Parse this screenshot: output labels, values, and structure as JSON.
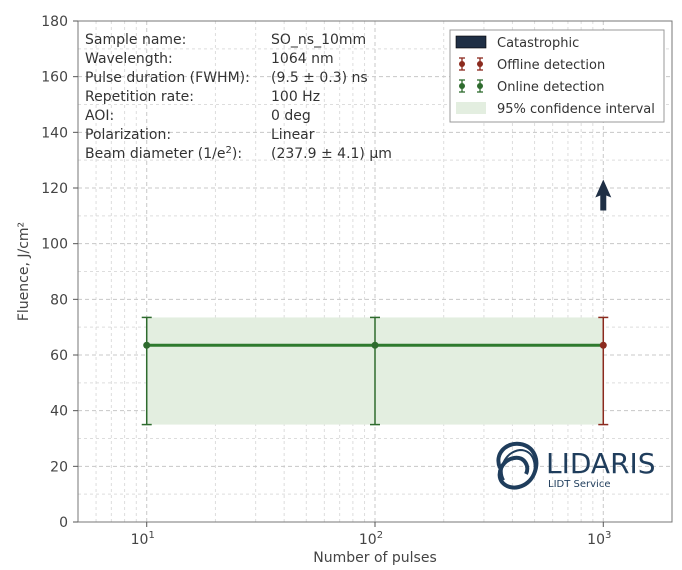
{
  "chart_data": {
    "type": "line",
    "xlabel": "Number of pulses",
    "ylabel": "Fluence, J/cm²",
    "xscale": "log",
    "xlim": [
      5,
      2000
    ],
    "ylim": [
      0,
      180
    ],
    "yticks": [
      0,
      20,
      40,
      60,
      80,
      100,
      120,
      140,
      160,
      180
    ],
    "xticks": [
      {
        "value": 10,
        "base": "10",
        "exp": "1"
      },
      {
        "value": 100,
        "base": "10",
        "exp": "2"
      },
      {
        "value": 1000,
        "base": "10",
        "exp": "3"
      }
    ],
    "grid": true,
    "info": [
      {
        "label": "Sample name:",
        "value": "SO_ns_10mm"
      },
      {
        "label": "Wavelength:",
        "value": "1064 nm"
      },
      {
        "label": "Pulse duration (FWHM):",
        "value": "(9.5 ± 0.3) ns"
      },
      {
        "label": "Repetition rate:",
        "value": "100 Hz"
      },
      {
        "label": "AOI:",
        "value": "0 deg"
      },
      {
        "label": "Polarization:",
        "value": "Linear"
      },
      {
        "label": "Beam diameter (1/e",
        "label_sup": "2",
        "label_end": "):",
        "value": "(237.9 ± 4.1) µm"
      }
    ],
    "legend": {
      "position": "top-right",
      "items": [
        {
          "label": "Catastrophic",
          "kind": "bar",
          "color": "#1f2f45"
        },
        {
          "label": "Offline detection",
          "kind": "errorbar",
          "color": "#8b2a1e"
        },
        {
          "label": "Online detection",
          "kind": "errorbar",
          "color": "#2e6b2e"
        },
        {
          "label": "95% confidence interval",
          "kind": "band",
          "color": "#e3eee0"
        }
      ]
    },
    "series": [
      {
        "kind": "online",
        "color": "#2e6b2e",
        "points": [
          {
            "x": 10,
            "y": 63.5,
            "ylow": 35,
            "yhigh": 73.5
          },
          {
            "x": 100,
            "y": 63.5,
            "ylow": 35,
            "yhigh": 73.5
          }
        ]
      },
      {
        "kind": "offline",
        "color": "#8b2a1e",
        "points": [
          {
            "x": 1000,
            "y": 63.5,
            "ylow": 35,
            "yhigh": 73.5
          }
        ]
      }
    ],
    "fit_line": {
      "x": [
        10,
        1000
      ],
      "y": [
        63.5,
        63.5
      ],
      "color": "#2e7a2e"
    },
    "confidence_band": {
      "x": [
        10,
        1000
      ],
      "ylow": 35,
      "yhigh": 73.5,
      "color": "#e3eee0"
    },
    "arrow": {
      "x": 1000,
      "y": 113,
      "direction": "up",
      "color": "#1f2f45"
    }
  },
  "logo": {
    "name": "LIDARIS",
    "tagline": "LIDT Service",
    "color": "#1f3d5c"
  }
}
